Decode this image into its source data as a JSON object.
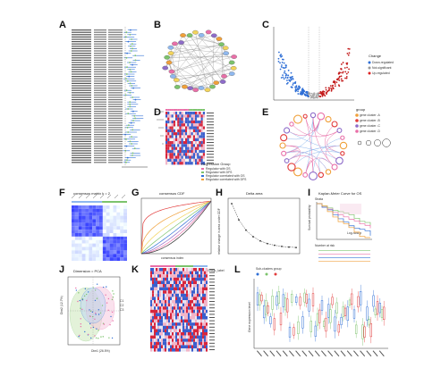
{
  "panel_labels": [
    "A",
    "B",
    "C",
    "D",
    "E",
    "F",
    "G",
    "H",
    "I",
    "J",
    "K",
    "L"
  ],
  "colors": {
    "red": "#e23b3b",
    "blue": "#2f6fd6",
    "light_blue": "#8fb8ee",
    "green": "#7cc36c",
    "pink": "#e96fa8",
    "orange": "#f0a03a",
    "purple": "#8e6cc9",
    "yellow": "#f2d35b"
  },
  "panels": {
    "F": {
      "title": "consensus matrix k = 2"
    },
    "G": {
      "title": "consensus CDF",
      "xlabel": "consensus index"
    },
    "H": {
      "title": "Delta area",
      "ylabel": "relative change in area under CDF"
    },
    "I": {
      "title": "Kaplan-Meier Curve for OS",
      "y_axis": "Survival probability",
      "risk_table_title": "Number at risk",
      "p_label": "Log-rank p",
      "legend_title": "Strata"
    },
    "J": {
      "title": "Dimension = PCA",
      "xlabel": "Dim1 (26.5%)",
      "ylabel": "Dim2 (12.7%)",
      "legend": [
        "C1",
        "C2",
        "C3"
      ]
    },
    "K": {
      "legend_title": "Group_label"
    },
    "L": {
      "legend_title": "Sub-clusters group",
      "legend_items": [
        "A",
        "B",
        "C"
      ],
      "ylabel": "Gene expression level"
    },
    "E": {
      "legend_title": "group",
      "legend_items": [
        "gene cluster -A",
        "gene cluster -B",
        "gene cluster -C",
        "gene cluster -D"
      ]
    },
    "C": {
      "legend_title": "Change",
      "legend_items": [
        "Down-regulated",
        "Not-significant",
        "Up-regulated"
      ]
    },
    "D": {
      "legend_title": "Regression Group",
      "legend_items": [
        "Regulator with OS",
        "Regulator with DFS",
        "Regulator correlated with OS",
        "Regulator correlated with DFS"
      ]
    }
  }
}
